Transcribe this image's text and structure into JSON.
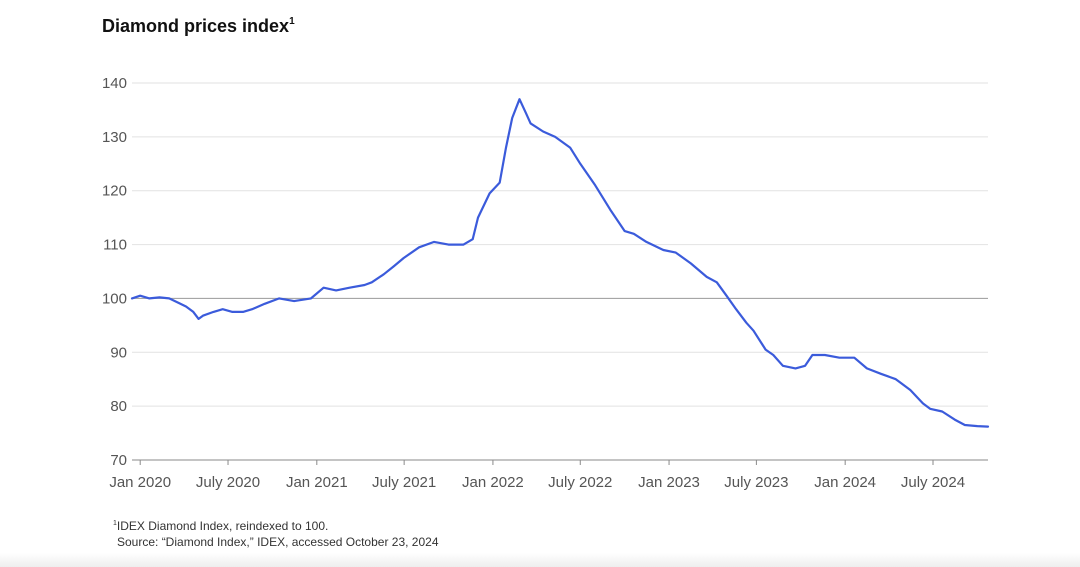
{
  "chart_data": {
    "type": "line",
    "title": "Diamond prices index",
    "title_footnote_marker": "1",
    "xlabel": "",
    "ylabel": "",
    "ylim": [
      70,
      140
    ],
    "yticks": [
      70,
      80,
      90,
      100,
      110,
      120,
      130,
      140
    ],
    "xlim": [
      "2019-12-15",
      "2024-10-23"
    ],
    "x_tick_dates": [
      "2020-01-01",
      "2020-07-01",
      "2021-01-01",
      "2021-07-01",
      "2022-01-01",
      "2022-07-01",
      "2023-01-01",
      "2023-07-01",
      "2024-01-01",
      "2024-07-01"
    ],
    "x_tick_labels": [
      "Jan 2020",
      "July 2020",
      "Jan 2021",
      "July 2021",
      "Jan 2022",
      "July 2022",
      "Jan 2023",
      "July 2023",
      "Jan 2024",
      "July 2024"
    ],
    "reference_line": 100,
    "grid": true,
    "legend": "none",
    "line_color": "#3B5BDB",
    "series": [
      {
        "x": [
          "2019-12-15",
          "2020-01-01",
          "2020-01-20",
          "2020-02-10",
          "2020-03-01",
          "2020-03-20",
          "2020-04-05",
          "2020-04-20",
          "2020-05-01",
          "2020-05-10",
          "2020-06-01",
          "2020-06-20",
          "2020-07-10",
          "2020-08-01",
          "2020-08-20",
          "2020-09-15",
          "2020-10-15",
          "2020-11-15",
          "2020-12-20",
          "2021-01-15",
          "2021-02-10",
          "2021-03-10",
          "2021-04-10",
          "2021-04-25",
          "2021-05-20",
          "2021-06-10",
          "2021-06-30",
          "2021-08-01",
          "2021-09-01",
          "2021-10-01",
          "2021-11-01",
          "2021-11-20",
          "2021-12-01",
          "2021-12-25",
          "2022-01-15",
          "2022-01-28",
          "2022-02-10",
          "2022-02-25",
          "2022-03-10",
          "2022-03-20",
          "2022-04-15",
          "2022-05-10",
          "2022-06-10",
          "2022-07-01",
          "2022-08-01",
          "2022-09-01",
          "2022-10-01",
          "2022-10-20",
          "2022-11-15",
          "2022-12-20",
          "2023-01-15",
          "2023-02-15",
          "2023-03-20",
          "2023-04-10",
          "2023-04-30",
          "2023-05-20",
          "2023-06-10",
          "2023-06-25",
          "2023-07-20",
          "2023-08-05",
          "2023-08-25",
          "2023-09-20",
          "2023-10-10",
          "2023-10-25",
          "2023-11-20",
          "2023-12-20",
          "2024-01-20",
          "2024-02-15",
          "2024-03-15",
          "2024-04-15",
          "2024-05-15",
          "2024-06-10",
          "2024-06-25",
          "2024-07-20",
          "2024-08-15",
          "2024-09-05",
          "2024-10-01",
          "2024-10-23"
        ],
        "values": [
          100.0,
          100.5,
          100.0,
          100.2,
          100.0,
          99.2,
          98.5,
          97.5,
          96.2,
          96.8,
          97.5,
          98.0,
          97.5,
          97.5,
          98.0,
          99.0,
          100.0,
          99.5,
          100.0,
          102.0,
          101.5,
          102.0,
          102.5,
          103.0,
          104.5,
          106.0,
          107.5,
          109.5,
          110.5,
          110.0,
          110.0,
          111.0,
          115.0,
          119.5,
          121.5,
          128.0,
          133.5,
          137.0,
          134.5,
          132.5,
          131.0,
          130.0,
          128.0,
          125.0,
          121.0,
          116.5,
          112.5,
          112.0,
          110.5,
          109.0,
          108.5,
          106.5,
          104.0,
          103.0,
          100.5,
          98.0,
          95.5,
          94.0,
          90.5,
          89.5,
          87.5,
          87.0,
          87.5,
          89.5,
          89.5,
          89.0,
          89.0,
          87.0,
          86.0,
          85.0,
          83.0,
          80.5,
          79.5,
          79.0,
          77.5,
          76.5,
          76.3,
          76.2
        ]
      }
    ]
  },
  "footnotes": {
    "note_marker": "1",
    "note_text": "IDEX Diamond Index, reindexed to 100.",
    "source": "Source: “Diamond Index,” IDEX, accessed October 23, 2024"
  }
}
